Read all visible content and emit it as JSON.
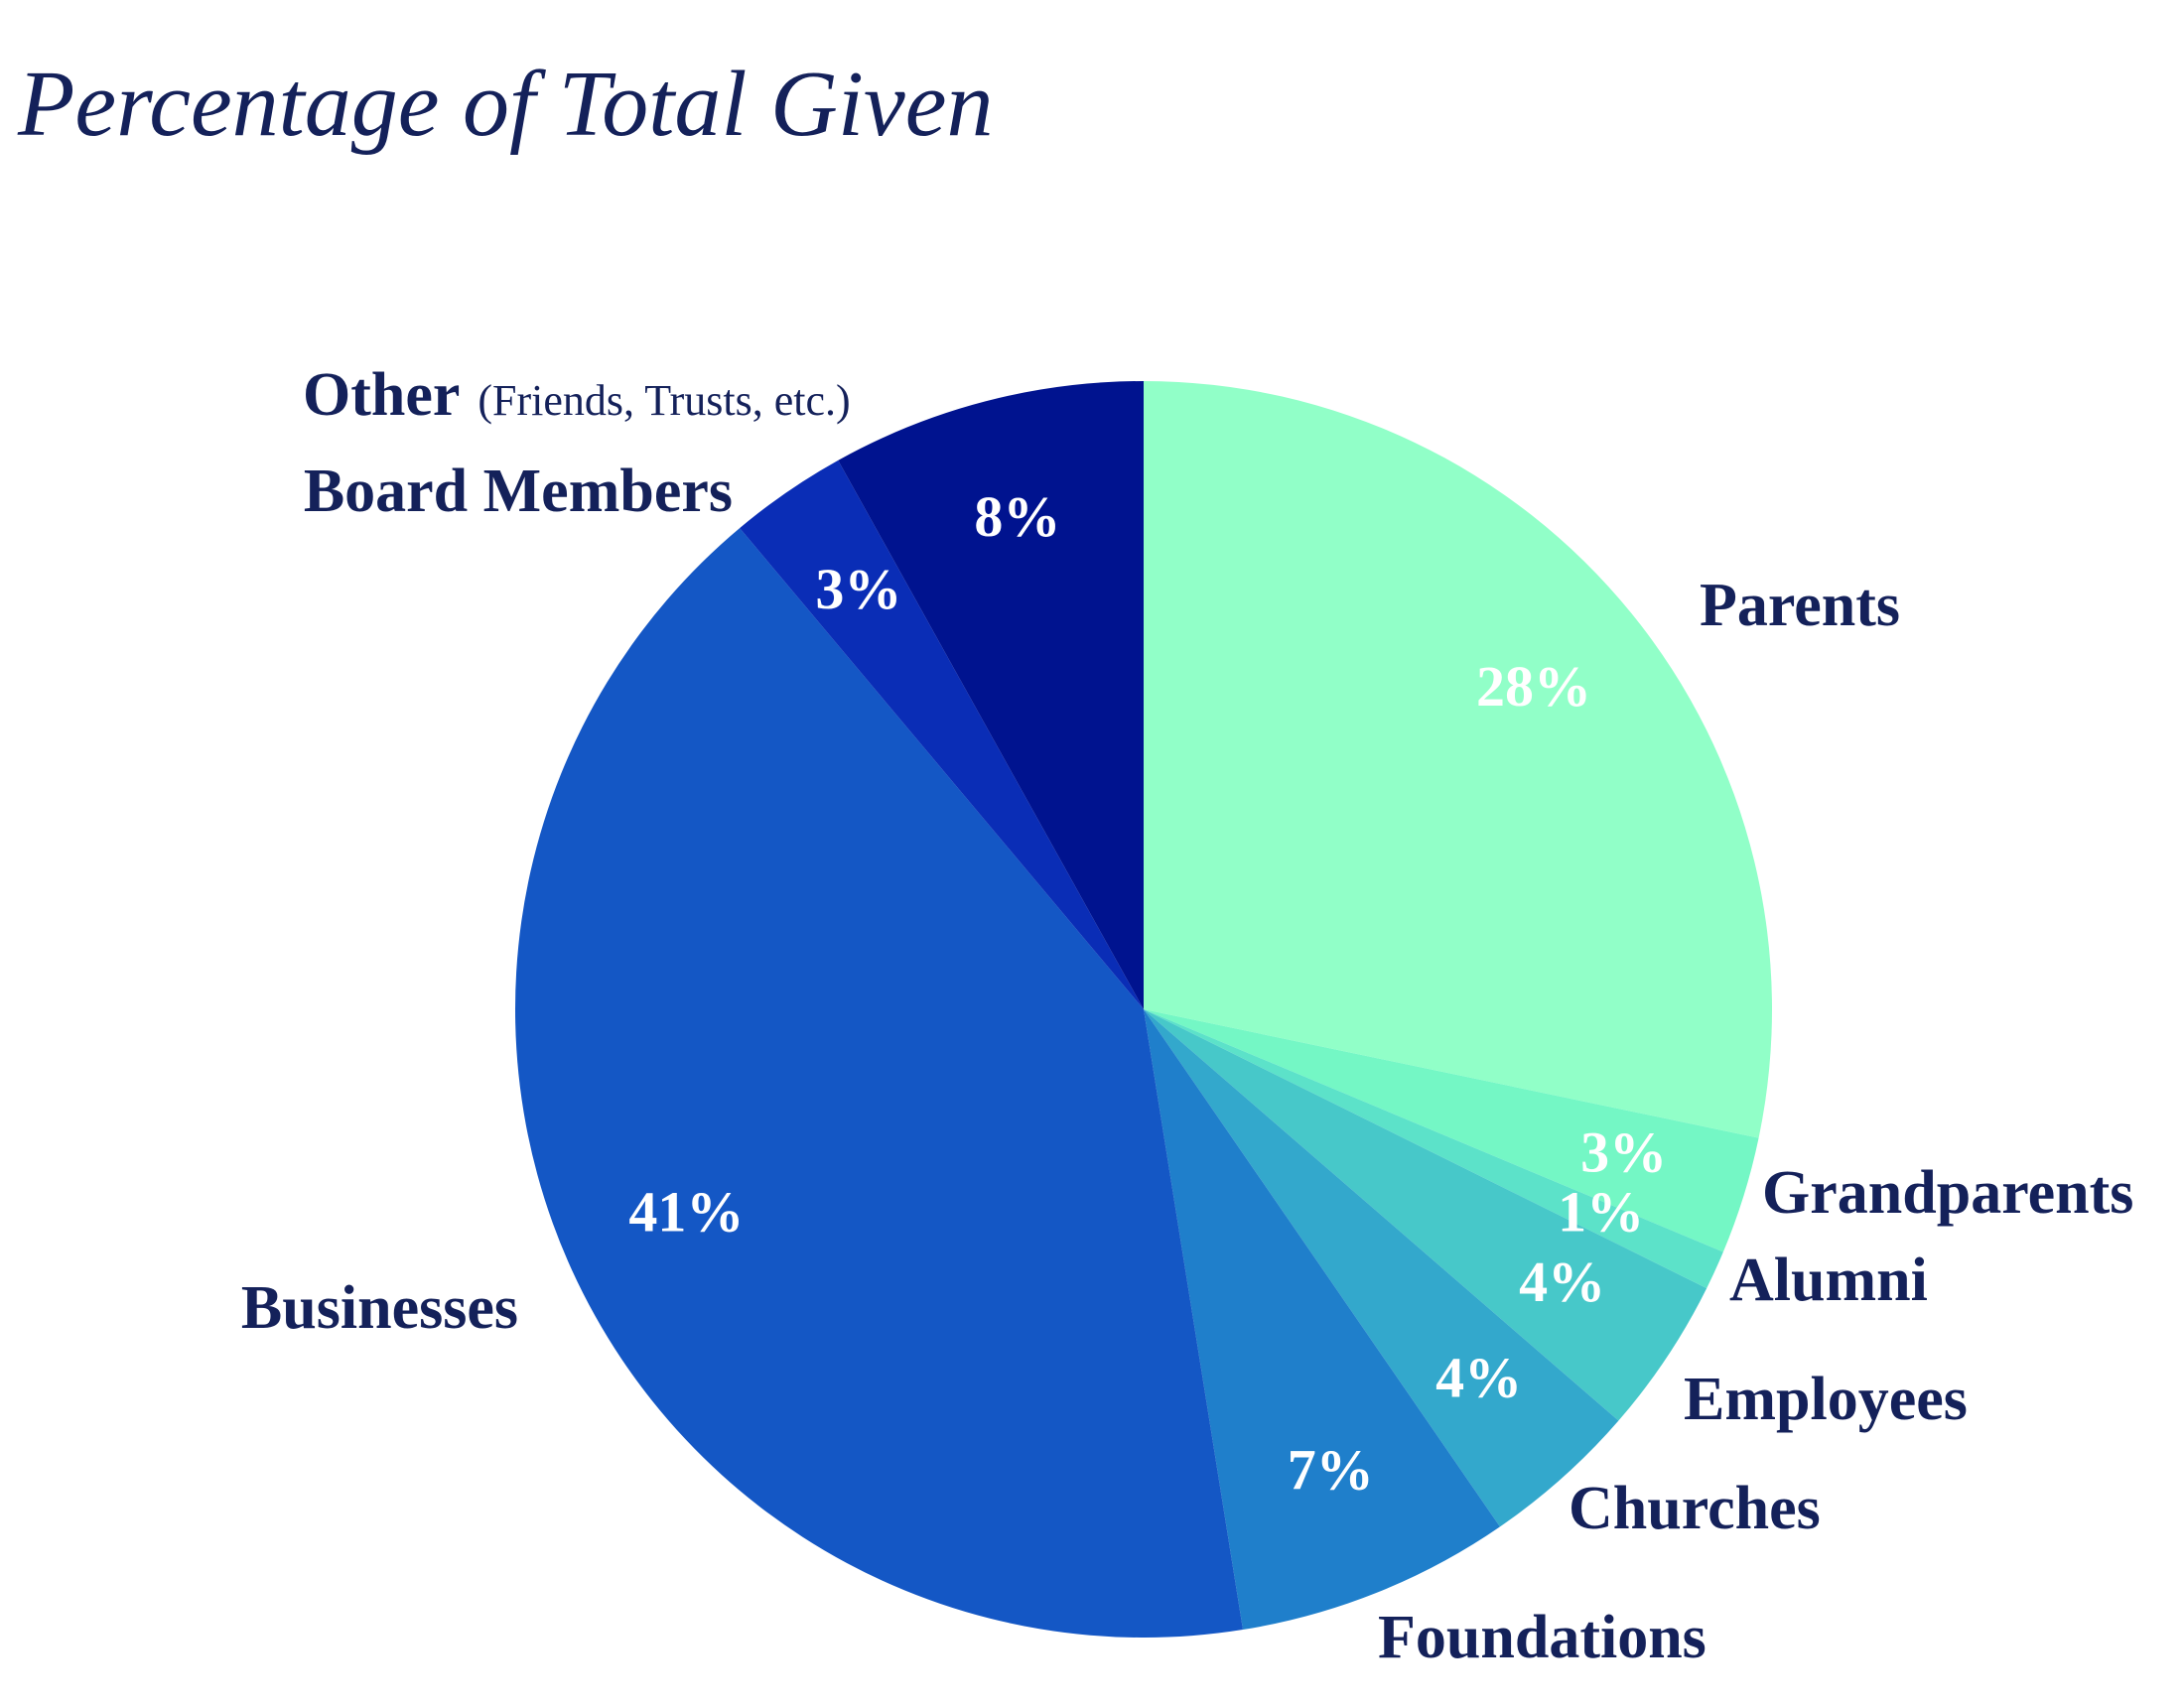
{
  "chart_data": {
    "type": "pie",
    "title": "Percentage of Total Given",
    "start": "12 o'clock, clockwise",
    "slices": [
      {
        "label": "Parents",
        "sublabel": "",
        "value": 28,
        "value_label": "28%",
        "color": "#91ffc8"
      },
      {
        "label": "Grandparents",
        "sublabel": "",
        "value": 3,
        "value_label": "3%",
        "color": "#74f7c5"
      },
      {
        "label": "Alumni",
        "sublabel": "",
        "value": 1,
        "value_label": "1%",
        "color": "#5ce2c9"
      },
      {
        "label": "Employees",
        "sublabel": "",
        "value": 4,
        "value_label": "4%",
        "color": "#47c8c9"
      },
      {
        "label": "Churches",
        "sublabel": "",
        "value": 4,
        "value_label": "4%",
        "color": "#33a8cc"
      },
      {
        "label": "Foundations",
        "sublabel": "",
        "value": 7,
        "value_label": "7%",
        "color": "#1f7fcb"
      },
      {
        "label": "Businesses",
        "sublabel": "",
        "value": 41,
        "value_label": "41%",
        "color": "#1457c5"
      },
      {
        "label": "Board Members",
        "sublabel": "",
        "value": 3,
        "value_label": "3%",
        "color": "#0a2db6"
      },
      {
        "label": "Other",
        "sublabel": "(Friends, Trusts, etc.)",
        "value": 8,
        "value_label": "8%",
        "color": "#00138f"
      }
    ]
  },
  "colors": {
    "title": "#14215a",
    "label": "#14215a",
    "value_label": "#ffffff"
  }
}
